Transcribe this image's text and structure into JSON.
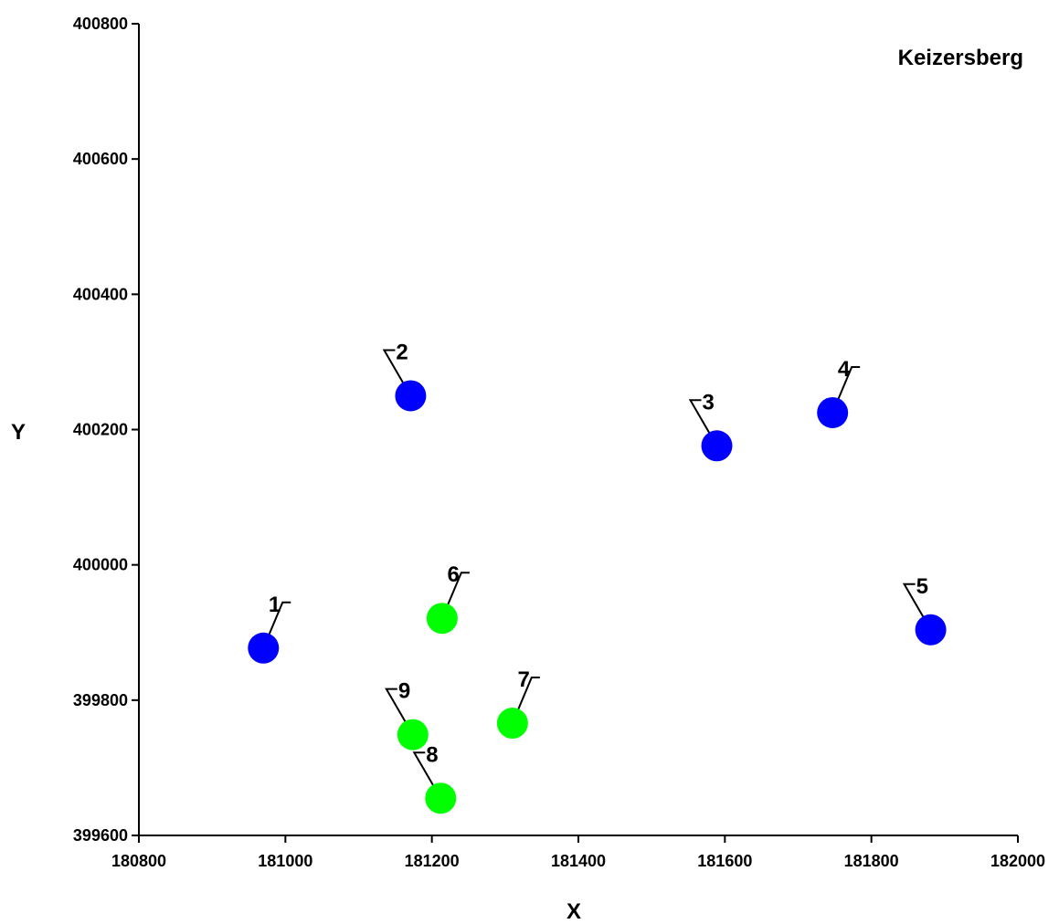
{
  "chart_data": {
    "type": "scatter",
    "title": "Keizersberg",
    "xlabel": "X",
    "ylabel": "Y",
    "xlim": [
      180800,
      182000
    ],
    "ylim": [
      399600,
      400800
    ],
    "x_ticks": [
      180800,
      181000,
      181200,
      181400,
      181600,
      181800,
      182000
    ],
    "y_ticks": [
      399600,
      399800,
      400000,
      400200,
      400400,
      400600,
      400800
    ],
    "x_tick_labels": [
      "180800",
      "181000",
      "181200",
      "181400",
      "181600",
      "181800",
      "182000"
    ],
    "y_tick_labels": [
      "399600",
      "399800",
      "400000",
      "400200",
      "400400",
      "400600",
      "400800"
    ],
    "grid": false,
    "points": [
      {
        "label": "1",
        "x": 180970,
        "y": 399877,
        "color": "#0000ff",
        "label_side": "right"
      },
      {
        "label": "2",
        "x": 181171,
        "y": 400250,
        "color": "#0000ff",
        "label_side": "left"
      },
      {
        "label": "3",
        "x": 181589,
        "y": 400176,
        "color": "#0000ff",
        "label_side": "left"
      },
      {
        "label": "4",
        "x": 181747,
        "y": 400225,
        "color": "#0000ff",
        "label_side": "right"
      },
      {
        "label": "5",
        "x": 181881,
        "y": 399904,
        "color": "#0000ff",
        "label_side": "left"
      },
      {
        "label": "6",
        "x": 181214,
        "y": 399921,
        "color": "#00ff00",
        "label_side": "right"
      },
      {
        "label": "7",
        "x": 181310,
        "y": 399766,
        "color": "#00ff00",
        "label_side": "right"
      },
      {
        "label": "8",
        "x": 181212,
        "y": 399655,
        "color": "#00ff00",
        "label_side": "left"
      },
      {
        "label": "9",
        "x": 181174,
        "y": 399749,
        "color": "#00ff00",
        "label_side": "left"
      }
    ]
  }
}
